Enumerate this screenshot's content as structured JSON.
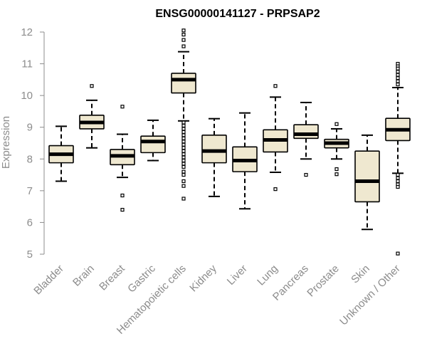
{
  "chart_data": {
    "type": "boxplot",
    "title": "ENSG00000141127 - PRPSAP2",
    "xlabel": "",
    "ylabel": "Expression",
    "ylim": [
      5,
      12
    ],
    "yticks": [
      5,
      6,
      7,
      8,
      9,
      10,
      11,
      12
    ],
    "grid": false,
    "box_color": "#efe8d0",
    "categories": [
      "Bladder",
      "Brain",
      "Breast",
      "Gastric",
      "Hematopoietic cells",
      "Kidney",
      "Liver",
      "Lung",
      "Pancreas",
      "Prostate",
      "Skin",
      "Unknown / Other"
    ],
    "boxes": [
      {
        "category": "Bladder",
        "whisker_low": 7.3,
        "q1": 7.88,
        "median": 8.15,
        "q3": 8.42,
        "whisker_high": 9.03,
        "outliers": []
      },
      {
        "category": "Brain",
        "whisker_low": 8.35,
        "q1": 8.95,
        "median": 9.15,
        "q3": 9.38,
        "whisker_high": 9.85,
        "outliers": [
          10.3
        ]
      },
      {
        "category": "Breast",
        "whisker_low": 7.42,
        "q1": 7.82,
        "median": 8.1,
        "q3": 8.3,
        "whisker_high": 8.78,
        "outliers": [
          9.65,
          6.85,
          6.4
        ]
      },
      {
        "category": "Gastric",
        "whisker_low": 7.95,
        "q1": 8.2,
        "median": 8.55,
        "q3": 8.72,
        "whisker_high": 9.22,
        "outliers": []
      },
      {
        "category": "Hematopoietic cells",
        "whisker_low": 9.2,
        "q1": 10.08,
        "median": 10.5,
        "q3": 10.7,
        "whisker_high": 11.38,
        "outliers": [
          12.05,
          11.92,
          11.75,
          11.55,
          9.15,
          9.05,
          8.95,
          8.85,
          8.75,
          8.65,
          8.55,
          8.45,
          8.35,
          8.25,
          8.15,
          8.05,
          7.95,
          7.85,
          7.75,
          7.6,
          7.5,
          7.3,
          7.15,
          6.75
        ]
      },
      {
        "category": "Kidney",
        "whisker_low": 6.82,
        "q1": 7.88,
        "median": 8.25,
        "q3": 8.75,
        "whisker_high": 9.27,
        "outliers": []
      },
      {
        "category": "Liver",
        "whisker_low": 6.43,
        "q1": 7.6,
        "median": 7.95,
        "q3": 8.38,
        "whisker_high": 9.45,
        "outliers": []
      },
      {
        "category": "Lung",
        "whisker_low": 7.58,
        "q1": 8.22,
        "median": 8.6,
        "q3": 8.92,
        "whisker_high": 9.95,
        "outliers": [
          10.3,
          7.05
        ]
      },
      {
        "category": "Pancreas",
        "whisker_low": 8.0,
        "q1": 8.65,
        "median": 8.78,
        "q3": 9.08,
        "whisker_high": 9.78,
        "outliers": [
          7.5
        ]
      },
      {
        "category": "Prostate",
        "whisker_low": 8.0,
        "q1": 8.35,
        "median": 8.5,
        "q3": 8.62,
        "whisker_high": 8.95,
        "outliers": [
          9.1,
          7.68,
          7.52
        ]
      },
      {
        "category": "Skin",
        "whisker_low": 5.78,
        "q1": 6.65,
        "median": 7.3,
        "q3": 8.25,
        "whisker_high": 8.75,
        "outliers": []
      },
      {
        "category": "Unknown / Other",
        "whisker_low": 7.55,
        "q1": 8.58,
        "median": 8.92,
        "q3": 9.28,
        "whisker_high": 10.25,
        "outliers": [
          11.0,
          10.92,
          10.85,
          10.75,
          10.65,
          10.55,
          10.45,
          10.35,
          7.5,
          7.4,
          7.3,
          7.2,
          7.12,
          5.02
        ]
      }
    ]
  }
}
